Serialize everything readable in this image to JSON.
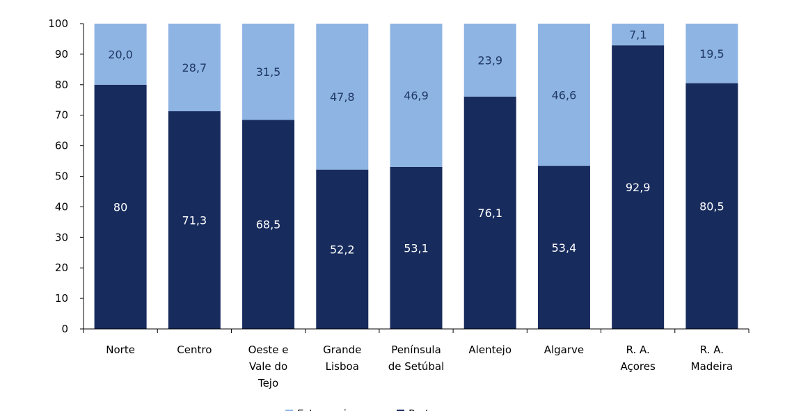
{
  "chart_data": {
    "type": "bar",
    "stacked": true,
    "title": "",
    "xlabel": "",
    "ylabel": "",
    "ylim": [
      0,
      100
    ],
    "yticks": [
      0,
      10,
      20,
      30,
      40,
      50,
      60,
      70,
      80,
      90,
      100
    ],
    "grid": false,
    "legend_position": "bottom",
    "categories": [
      [
        "Norte"
      ],
      [
        "Centro"
      ],
      [
        "Oeste e",
        "Vale do",
        "Tejo"
      ],
      [
        "Grande",
        "Lisboa"
      ],
      [
        "Península",
        "de Setúbal"
      ],
      [
        "Alentejo"
      ],
      [
        "Algarve"
      ],
      [
        "R. A.",
        "Açores"
      ],
      [
        "R. A.",
        "Madeira"
      ]
    ],
    "series": [
      {
        "name": "Portugueses",
        "color": "#172B5D",
        "label_color": "#ffffff",
        "values": [
          80,
          71.3,
          68.5,
          52.2,
          53.1,
          76.1,
          53.4,
          92.9,
          80.5
        ],
        "labels": [
          "80",
          "71,3",
          "68,5",
          "52,2",
          "53,1",
          "76,1",
          "53,4",
          "92,9",
          "80,5"
        ]
      },
      {
        "name": "Estrangeiros",
        "color": "#8EB4E3",
        "label_color": "#1F3864",
        "values": [
          20.0,
          28.7,
          31.5,
          47.8,
          46.9,
          23.9,
          46.6,
          7.1,
          19.5
        ],
        "labels": [
          "20,0",
          "28,7",
          "31,5",
          "47,8",
          "46,9",
          "23,9",
          "46,6",
          "7,1",
          "19,5"
        ]
      }
    ]
  }
}
